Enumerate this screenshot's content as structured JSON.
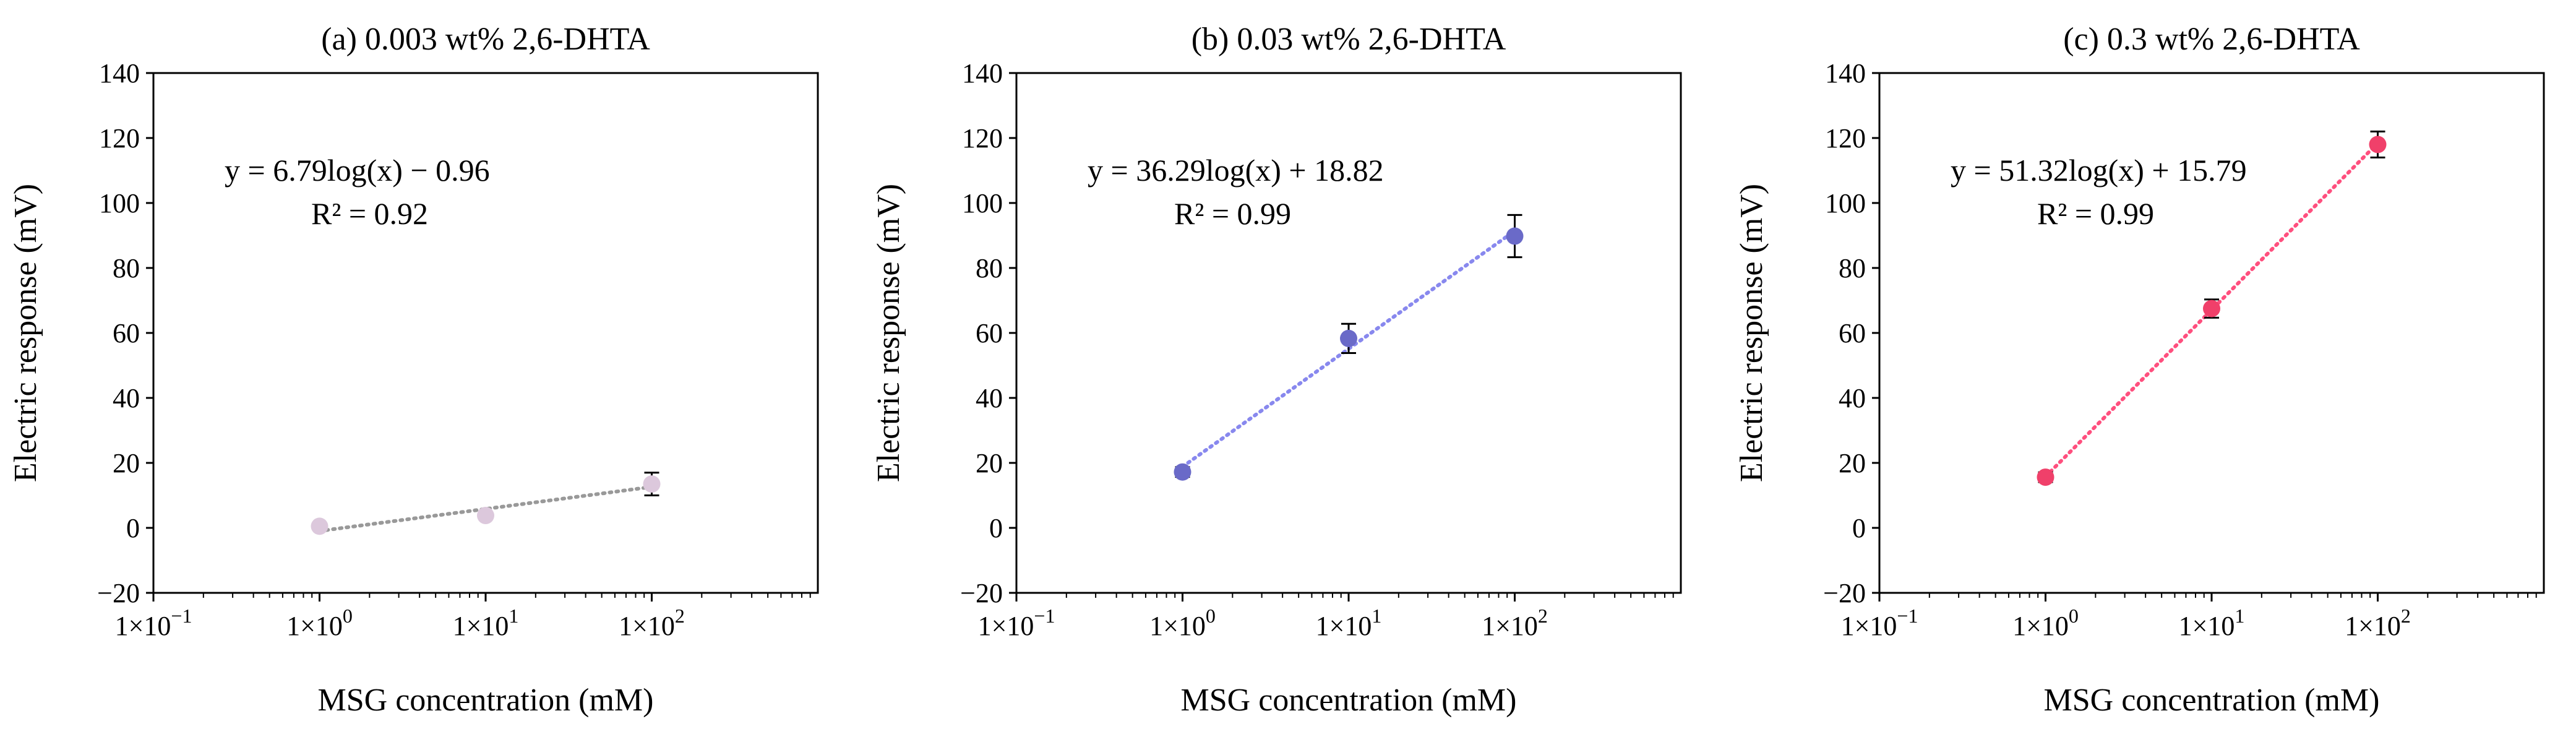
{
  "chart_data": [
    {
      "type": "scatter",
      "title": "(a) 0.003 wt% 2,6-DHTA",
      "xlabel": "MSG concentration (mM)",
      "ylabel": "Electric response (mV)",
      "xscale": "log",
      "xlim": [
        0.1,
        1000
      ],
      "ylim": [
        -20,
        140
      ],
      "yticks": [
        -20,
        0,
        20,
        40,
        60,
        80,
        100,
        120,
        140
      ],
      "xticks": [
        0.1,
        1,
        10,
        100
      ],
      "xtick_labels": [
        {
          "mant": "1×10",
          "exp": "−1"
        },
        {
          "mant": "1×10",
          "exp": "0"
        },
        {
          "mant": "1×10",
          "exp": "1"
        },
        {
          "mant": "1×10",
          "exp": "2"
        }
      ],
      "color": "#dcc8dc",
      "trend_color": "#999999",
      "series": [
        {
          "name": "0.003 wt% 2,6-DHTA",
          "x": [
            1,
            10,
            100
          ],
          "y": [
            0.5,
            3.8,
            13.5
          ],
          "err": [
            0.8,
            1.0,
            3.5
          ]
        }
      ],
      "fit": {
        "slope": 6.79,
        "intercept": -0.96
      },
      "equation": "y = 6.79log(x) − 0.96",
      "r2": "R² = 0.92",
      "grid": false
    },
    {
      "type": "scatter",
      "title": "(b) 0.03 wt% 2,6-DHTA",
      "xlabel": "MSG concentration (mM)",
      "ylabel": "Electric response (mV)",
      "xscale": "log",
      "xlim": [
        0.1,
        1000
      ],
      "ylim": [
        -20,
        140
      ],
      "yticks": [
        -20,
        0,
        20,
        40,
        60,
        80,
        100,
        120,
        140
      ],
      "xticks": [
        0.1,
        1,
        10,
        100
      ],
      "xtick_labels": [
        {
          "mant": "1×10",
          "exp": "−1"
        },
        {
          "mant": "1×10",
          "exp": "0"
        },
        {
          "mant": "1×10",
          "exp": "1"
        },
        {
          "mant": "1×10",
          "exp": "2"
        }
      ],
      "color": "#6a6ac8",
      "trend_color": "#8888ee",
      "series": [
        {
          "name": "0.03 wt% 2,6-DHTA",
          "x": [
            1,
            10,
            100
          ],
          "y": [
            17.2,
            58.3,
            89.8
          ],
          "err": [
            1.5,
            4.5,
            6.5
          ]
        }
      ],
      "fit": {
        "slope": 36.29,
        "intercept": 18.82
      },
      "equation": "y = 36.29log(x) + 18.82",
      "r2": "R² = 0.99",
      "grid": false
    },
    {
      "type": "scatter",
      "title": "(c) 0.3 wt% 2,6-DHTA",
      "xlabel": "MSG concentration (mM)",
      "ylabel": "Electric response (mV)",
      "xscale": "log",
      "xlim": [
        0.1,
        1000
      ],
      "ylim": [
        -20,
        140
      ],
      "yticks": [
        -20,
        0,
        20,
        40,
        60,
        80,
        100,
        120,
        140
      ],
      "xticks": [
        0.1,
        1,
        10,
        100
      ],
      "xtick_labels": [
        {
          "mant": "1×10",
          "exp": "−1"
        },
        {
          "mant": "1×10",
          "exp": "0"
        },
        {
          "mant": "1×10",
          "exp": "1"
        },
        {
          "mant": "1×10",
          "exp": "2"
        }
      ],
      "color": "#f0406a",
      "trend_color": "#ff4f7e",
      "series": [
        {
          "name": "0.3 wt% 2,6-DHTA",
          "x": [
            1,
            10,
            100
          ],
          "y": [
            15.6,
            67.5,
            118.0
          ],
          "err": [
            1.5,
            2.8,
            4.0
          ]
        }
      ],
      "fit": {
        "slope": 51.32,
        "intercept": 15.79
      },
      "equation": "y = 51.32log(x) + 15.79",
      "r2": "R² = 0.99",
      "grid": false
    }
  ]
}
